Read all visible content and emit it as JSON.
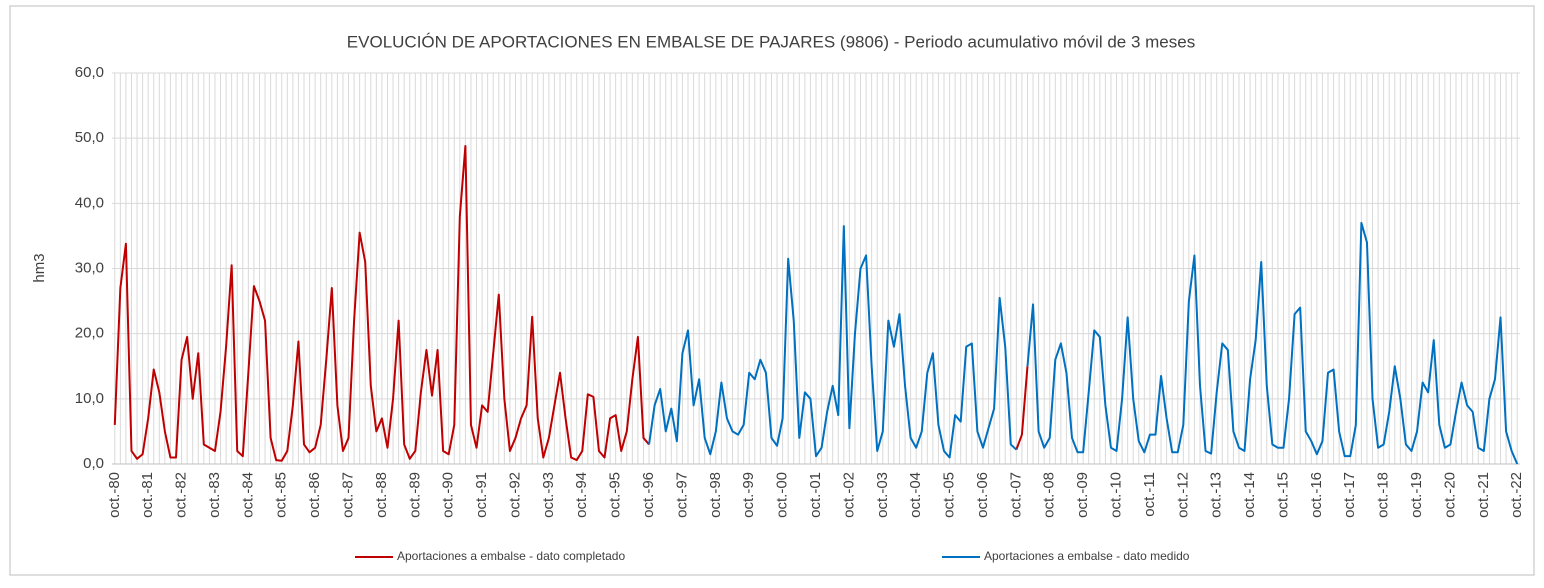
{
  "chart_data": {
    "type": "line",
    "title": "EVOLUCIÓN DE APORTACIONES EN EMBALSE DE PAJARES (9806) - Periodo acumulativo móvil de 3 meses",
    "y_label": "hm3",
    "categories": [
      "oct.-80",
      null,
      null,
      null,
      null,
      null,
      "oct.-81",
      null,
      null,
      null,
      null,
      null,
      "oct.-82",
      null,
      null,
      null,
      null,
      null,
      "oct.-83",
      null,
      null,
      null,
      null,
      null,
      "oct.-84",
      null,
      null,
      null,
      null,
      null,
      "oct.-85",
      null,
      null,
      null,
      null,
      null,
      "oct.-86",
      null,
      null,
      null,
      null,
      null,
      "oct.-87",
      null,
      null,
      null,
      null,
      null,
      "oct.-88",
      null,
      null,
      null,
      null,
      null,
      "oct.-89",
      null,
      null,
      null,
      null,
      null,
      "oct.-90",
      null,
      null,
      null,
      null,
      null,
      "oct.-91",
      null,
      null,
      null,
      null,
      null,
      "oct.-92",
      null,
      null,
      null,
      null,
      null,
      "oct.-93",
      null,
      null,
      null,
      null,
      null,
      "oct.-94",
      null,
      null,
      null,
      null,
      null,
      "oct.-95",
      null,
      null,
      null,
      null,
      null,
      "oct.-96",
      null,
      null,
      null,
      null,
      null,
      "oct.-97",
      null,
      null,
      null,
      null,
      null,
      "oct.-98",
      null,
      null,
      null,
      null,
      null,
      "oct.-99",
      null,
      null,
      null,
      null,
      null,
      "oct.-00",
      null,
      null,
      null,
      null,
      null,
      "oct.-01",
      null,
      null,
      null,
      null,
      null,
      "oct.-02",
      null,
      null,
      null,
      null,
      null,
      "oct.-03",
      null,
      null,
      null,
      null,
      null,
      "oct.-04",
      null,
      null,
      null,
      null,
      null,
      "oct.-05",
      null,
      null,
      null,
      null,
      null,
      "oct.-06",
      null,
      null,
      null,
      null,
      null,
      "oct.-07",
      null,
      null,
      null,
      null,
      null,
      "oct.-08",
      null,
      null,
      null,
      null,
      null,
      "oct.-09",
      null,
      null,
      null,
      null,
      null,
      "oct.-10",
      null,
      null,
      null,
      null,
      null,
      "oct.-11",
      null,
      null,
      null,
      null,
      null,
      "oct.-12",
      null,
      null,
      null,
      null,
      null,
      "oct.-13",
      null,
      null,
      null,
      null,
      null,
      "oct.-14",
      null,
      null,
      null,
      null,
      null,
      "oct.-15",
      null,
      null,
      null,
      null,
      null,
      "oct.-16",
      null,
      null,
      null,
      null,
      null,
      "oct.-17",
      null,
      null,
      null,
      null,
      null,
      "oct.-18",
      null,
      null,
      null,
      null,
      null,
      "oct.-19",
      null,
      null,
      null,
      null,
      null,
      "oct.-20",
      null,
      null,
      null,
      null,
      null,
      "oct.-21",
      null,
      null,
      null,
      null,
      null,
      "oct.-22"
    ],
    "series": [
      {
        "name": "Aportaciones a embalse - dato completado",
        "color": "#c00000",
        "values": [
          6,
          27,
          33.8,
          2,
          0.8,
          1.5,
          7,
          14.5,
          11,
          5,
          1,
          1,
          16,
          19.5,
          10,
          17,
          3,
          2.5,
          2,
          8,
          18,
          30.5,
          2,
          1.2,
          14,
          27.3,
          25,
          22,
          4,
          0.6,
          0.5,
          2,
          9,
          18.8,
          3,
          1.8,
          2.5,
          6,
          16,
          27,
          9,
          2,
          4,
          22,
          35.5,
          31,
          12,
          5,
          7,
          2.5,
          10,
          22,
          3,
          0.8,
          2,
          11,
          17.5,
          10.5,
          17.5,
          2,
          1.5,
          6,
          38,
          48.8,
          6,
          2.5,
          9,
          8,
          17,
          26,
          10,
          2,
          4,
          7,
          9,
          22.6,
          7,
          1,
          4,
          9,
          14,
          7,
          1,
          0.6,
          2,
          10.7,
          10.3,
          2,
          1,
          7,
          7.5,
          2,
          5,
          13,
          19.5,
          4,
          3,
          null,
          null,
          null,
          null,
          null,
          null,
          null,
          null,
          null,
          null,
          null,
          null,
          null,
          null,
          null,
          null,
          null,
          null,
          null,
          null,
          null,
          null,
          null,
          null,
          null,
          null,
          null,
          null,
          null,
          null,
          null,
          null,
          null,
          null,
          null,
          null,
          null,
          null,
          null,
          null,
          null,
          null,
          null,
          null,
          null,
          null,
          null,
          null,
          null,
          null,
          null,
          null,
          null,
          null,
          null,
          null,
          null,
          null,
          null,
          null,
          null,
          null,
          null,
          null,
          null,
          2.2,
          4.5,
          15,
          null,
          null,
          null,
          null,
          null,
          null,
          null,
          null,
          null,
          null,
          null,
          null,
          null,
          null,
          null,
          null,
          null,
          null,
          null,
          null,
          null,
          null,
          null,
          null,
          null,
          null,
          null,
          null,
          null,
          null,
          null,
          null,
          null,
          null,
          null,
          null,
          null,
          null,
          null,
          null,
          null,
          null,
          null,
          null,
          null,
          null,
          null,
          null,
          null,
          null,
          null,
          null,
          null,
          null,
          null,
          null,
          null,
          null,
          null,
          null,
          null,
          null,
          null,
          null,
          null,
          null,
          null,
          null,
          null,
          null,
          null,
          null,
          null,
          null,
          null,
          null,
          null,
          null,
          null,
          null,
          null,
          null,
          null,
          null,
          null,
          null,
          null,
          null
        ]
      },
      {
        "name": "Aportaciones a embalse - dato medido",
        "color": "#0070c0",
        "values": [
          null,
          null,
          null,
          null,
          null,
          null,
          null,
          null,
          null,
          null,
          null,
          null,
          null,
          null,
          null,
          null,
          null,
          null,
          null,
          null,
          null,
          null,
          null,
          null,
          null,
          null,
          null,
          null,
          null,
          null,
          null,
          null,
          null,
          null,
          null,
          null,
          null,
          null,
          null,
          null,
          null,
          null,
          null,
          null,
          null,
          null,
          null,
          null,
          null,
          null,
          null,
          null,
          null,
          null,
          null,
          null,
          null,
          null,
          null,
          null,
          null,
          null,
          null,
          null,
          null,
          null,
          null,
          null,
          null,
          null,
          null,
          null,
          null,
          null,
          null,
          null,
          null,
          null,
          null,
          null,
          null,
          null,
          null,
          null,
          null,
          null,
          null,
          null,
          null,
          null,
          null,
          null,
          null,
          null,
          null,
          null,
          3,
          9,
          11.5,
          5,
          8.5,
          3.5,
          17,
          20.5,
          9,
          13,
          4,
          1.5,
          5,
          12.5,
          7,
          5,
          4.5,
          6,
          14,
          13,
          16,
          14,
          4,
          2.8,
          7,
          31.5,
          22,
          4,
          11,
          10,
          1.2,
          2.5,
          8,
          12,
          7.5,
          36.5,
          5.5,
          20,
          30,
          32,
          15,
          2,
          5,
          22,
          18,
          23,
          12,
          4,
          2.5,
          5,
          14,
          17,
          6,
          2,
          1,
          7.5,
          6.5,
          18,
          18.5,
          5,
          2.5,
          5.5,
          8.5,
          25.5,
          18,
          3,
          2.2,
          null,
          15,
          24.5,
          5,
          2.5,
          4,
          16,
          18.5,
          14,
          4,
          1.8,
          1.8,
          11,
          20.5,
          19.5,
          9,
          2.5,
          2,
          10,
          22.5,
          10,
          3.5,
          1.8,
          4.5,
          4.5,
          13.5,
          7,
          1.8,
          1.8,
          6,
          25,
          32,
          12,
          2,
          1.6,
          11,
          18.5,
          17.5,
          5,
          2.5,
          2,
          13,
          19,
          31,
          12,
          3,
          2.5,
          2.5,
          10,
          23,
          24,
          5,
          3.5,
          1.5,
          3.5,
          14,
          14.5,
          5,
          1.2,
          1.2,
          6,
          37,
          34,
          10,
          2.5,
          3,
          8,
          15,
          10,
          3,
          2,
          5,
          12.5,
          11,
          19,
          6,
          2.5,
          3,
          8,
          12.5,
          9,
          8,
          2.5,
          2,
          10,
          13,
          22.5,
          5,
          2,
          0
        ]
      }
    ],
    "ylim": [
      0,
      60
    ],
    "yticks": [
      {
        "value": 0,
        "label": "0,0"
      },
      {
        "value": 10,
        "label": "10,0"
      },
      {
        "value": 20,
        "label": "20,0"
      },
      {
        "value": 30,
        "label": "30,0"
      },
      {
        "value": 40,
        "label": "40,0"
      },
      {
        "value": 50,
        "label": "50,0"
      },
      {
        "value": 60,
        "label": "60,0"
      }
    ],
    "grid": true,
    "legend": "bottom"
  }
}
